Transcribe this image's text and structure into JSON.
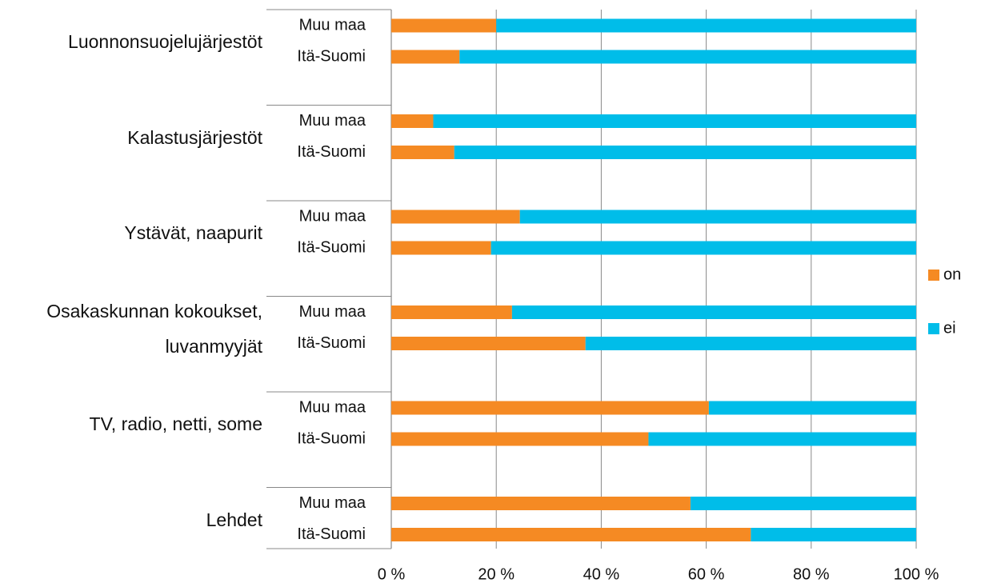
{
  "chart_data": {
    "type": "stacked_barh",
    "groups": [
      "Luonnonsuojelujärjestöt",
      "Kalastusjärjestöt",
      "Ystävät, naapurit",
      "Osakaskunnan kokoukset, luvanmyyjät",
      "TV, radio, netti, some",
      "Lehdet"
    ],
    "categories": [
      "Muu maa",
      "Itä-Suomi",
      "Muu maa",
      "Itä-Suomi",
      "Muu maa",
      "Itä-Suomi",
      "Muu maa",
      "Itä-Suomi",
      "Muu maa",
      "Itä-Suomi",
      "Muu maa",
      "Itä-Suomi"
    ],
    "series": [
      {
        "name": "on",
        "color": "#f58a23",
        "values": [
          20,
          13,
          8,
          12,
          24.5,
          19,
          23,
          37,
          60.5,
          49,
          57,
          68.5
        ]
      },
      {
        "name": "ei",
        "color": "#00bde9",
        "values": [
          80,
          87,
          92,
          88,
          75.5,
          81,
          77,
          63,
          39.5,
          51,
          43,
          31.5
        ]
      }
    ],
    "xlim": [
      0,
      100
    ],
    "xticks": [
      {
        "value": 0,
        "label": "0 %"
      },
      {
        "value": 20,
        "label": "20 %"
      },
      {
        "value": 40,
        "label": "40 %"
      },
      {
        "value": 60,
        "label": "60 %"
      },
      {
        "value": 80,
        "label": "80 %"
      },
      {
        "value": 100,
        "label": "100 %"
      }
    ],
    "grid": true,
    "legend": "right"
  }
}
